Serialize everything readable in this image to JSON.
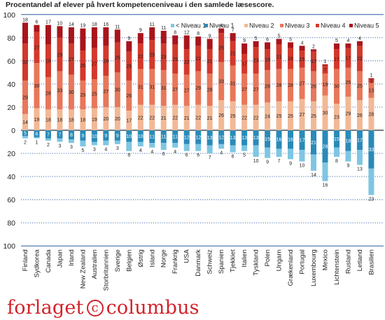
{
  "chart_data": {
    "type": "bar",
    "stacked": "diverging",
    "title": "Procentandel af elever på hvert kompetenceniveau i den samlede læsescore.",
    "ylim": [
      -100,
      100
    ],
    "yticks": [
      100,
      80,
      60,
      40,
      20,
      0,
      20,
      40,
      60,
      80,
      100
    ],
    "grid": "dotted-blue",
    "legend_position": "top-right",
    "levels": [
      {
        "name": "< Niveau 1",
        "color": "#7ec6e3"
      },
      {
        "name": "Niveau 1",
        "color": "#2a8ab8"
      },
      {
        "name": "Niveau 2",
        "color": "#f2b896"
      },
      {
        "name": "Niveau 3",
        "color": "#e8775a"
      },
      {
        "name": "Niveau 4",
        "color": "#d2392c"
      },
      {
        "name": "Niveau 5",
        "color": "#a8151c"
      }
    ],
    "categories": [
      "Finland",
      "Sydkorea",
      "Canada",
      "Japan",
      "Irland",
      "New Zealand",
      "Australien",
      "Storbritannien",
      "Sverige",
      "Belgien",
      "Østrig",
      "Island",
      "Norge",
      "Frankrig",
      "USA",
      "Danmark",
      "Schweiz",
      "Spanien",
      "Tjekkiet",
      "Italien",
      "Tyskland",
      "Polen",
      "Ungarn",
      "Grækenland",
      "Portugal",
      "Luxembourg",
      "Mexico",
      "Lichtenstein",
      "Rusland",
      "Letland",
      "Brasilien"
    ],
    "series": [
      {
        "name": "< Niveau 1",
        "values": [
          2,
          1,
          2,
          3,
          3,
          5,
          3,
          4,
          3,
          8,
          4,
          4,
          6,
          4,
          6,
          6,
          7,
          4,
          6,
          5,
          10,
          9,
          7,
          9,
          10,
          14,
          16,
          8,
          9,
          13,
          23
        ]
      },
      {
        "name": "Niveau 1",
        "values": [
          5,
          6,
          7,
          7,
          8,
          9,
          10,
          9,
          9,
          10,
          10,
          11,
          11,
          11,
          12,
          12,
          13,
          12,
          13,
          13,
          13,
          15,
          16,
          16,
          17,
          21,
          28,
          15,
          18,
          17,
          33
        ]
      },
      {
        "name": "Niveau 2",
        "values": [
          14,
          19,
          18,
          18,
          18,
          18,
          19,
          20,
          20,
          17,
          22,
          22,
          21,
          22,
          21,
          22,
          21,
          26,
          25,
          22,
          22,
          24,
          25,
          25,
          27,
          25,
          30,
          23,
          29,
          26,
          28
        ]
      },
      {
        "name": "Niveau 3",
        "values": [
          29,
          39,
          28,
          33,
          30,
          25,
          25,
          27,
          30,
          26,
          31,
          31,
          31,
          27,
          27,
          29,
          28,
          33,
          31,
          27,
          27,
          28,
          28,
          28,
          27,
          26,
          19,
          30,
          25,
          25,
          13
        ]
      },
      {
        "name": "Niveau 4",
        "values": [
          32,
          27,
          28,
          29,
          27,
          26,
          27,
          26,
          26,
          25,
          22,
          25,
          23,
          25,
          22,
          22,
          21,
          25,
          21,
          17,
          23,
          18,
          21,
          18,
          15,
          17,
          7,
          17,
          17,
          22,
          3
        ]
      },
      {
        "name": "Niveau 5",
        "values": [
          18,
          6,
          17,
          10,
          14,
          19,
          18,
          16,
          11,
          9,
          9,
          11,
          11,
          8,
          12,
          8,
          9,
          4,
          7,
          9,
          5,
          6,
          5,
          5,
          4,
          2,
          1,
          5,
          4,
          4,
          1
        ]
      }
    ]
  },
  "publisher": {
    "name_left": "forlaget",
    "symbol": "c",
    "name_right": "columbus"
  }
}
